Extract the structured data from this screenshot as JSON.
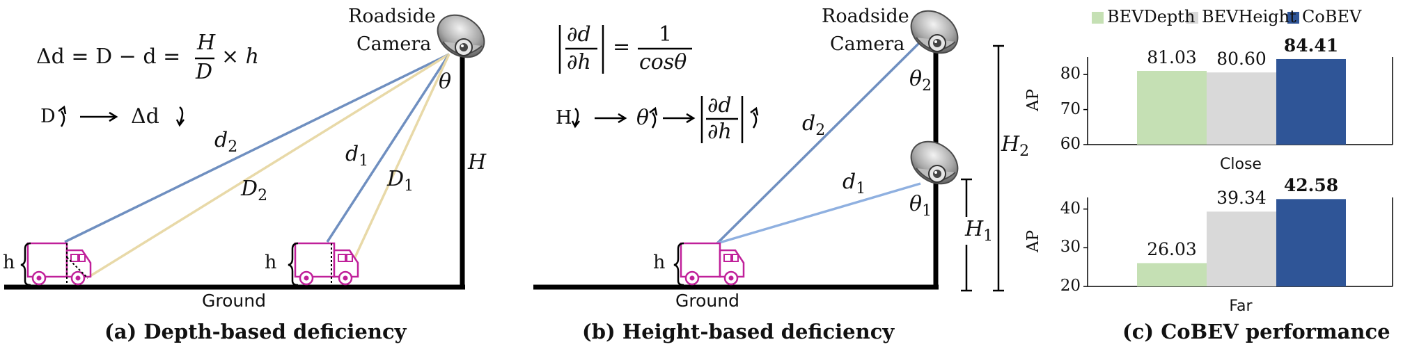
{
  "panel_a": {
    "camera_label_1": "Roadside",
    "camera_label_2": "Camera",
    "formula_lhs": "Δd = D − d =",
    "formula_num": "H",
    "formula_den": "D",
    "formula_rhs": "× h",
    "relation_left": "D",
    "relation_right": "Δd",
    "theta": "θ",
    "d2": "d",
    "d2_sub": "2",
    "D2": "D",
    "D2_sub": "2",
    "d1": "d",
    "d1_sub": "1",
    "D1": "D",
    "D1_sub": "1",
    "H": "H",
    "h1": "h",
    "h2": "h",
    "ground": "Ground",
    "caption": "(a) Depth-based deficiency"
  },
  "panel_b": {
    "camera_label_1": "Roadside",
    "camera_label_2": "Camera",
    "formula_num": "∂d",
    "formula_den": "∂h",
    "formula_eq": "=",
    "formula_rnum": "1",
    "formula_rden": "cosθ",
    "relation_h": "H",
    "relation_theta": "θ",
    "relation_num": "∂d",
    "relation_den": "∂h",
    "theta2": "θ",
    "theta2_sub": "2",
    "theta1": "θ",
    "theta1_sub": "1",
    "d2": "d",
    "d2_sub": "2",
    "d1": "d",
    "d1_sub": "1",
    "H2": "H",
    "H2_sub": "2",
    "H1": "H",
    "H1_sub": "1",
    "h": "h",
    "ground": "Ground",
    "caption": "(b) Height-based deficiency"
  },
  "panel_c": {
    "caption": "(c) CoBEV performance",
    "legend": [
      "BEVDepth",
      "BEVHeight",
      "CoBEV"
    ],
    "colors": [
      "#c5e0b4",
      "#d9d9d9",
      "#2f5597"
    ]
  },
  "chart_data": [
    {
      "type": "bar",
      "categories": [
        "Close"
      ],
      "series": [
        {
          "name": "BEVDepth",
          "values": [
            81.03
          ]
        },
        {
          "name": "BEVHeight",
          "values": [
            80.6
          ]
        },
        {
          "name": "CoBEV",
          "values": [
            84.41
          ]
        }
      ],
      "value_labels": [
        "81.03",
        "80.60",
        "84.41"
      ],
      "xlabel": "Close",
      "ylabel": "AP",
      "ylim": [
        60,
        85
      ],
      "yticks": [
        60,
        70,
        80
      ],
      "bold_series": "CoBEV"
    },
    {
      "type": "bar",
      "categories": [
        "Far"
      ],
      "series": [
        {
          "name": "BEVDepth",
          "values": [
            26.03
          ]
        },
        {
          "name": "BEVHeight",
          "values": [
            39.34
          ]
        },
        {
          "name": "CoBEV",
          "values": [
            42.58
          ]
        }
      ],
      "value_labels": [
        "26.03",
        "39.34",
        "42.58"
      ],
      "xlabel": "Far",
      "ylabel": "AP",
      "ylim": [
        20,
        43
      ],
      "yticks": [
        20,
        30,
        40
      ],
      "bold_series": "CoBEV"
    }
  ]
}
